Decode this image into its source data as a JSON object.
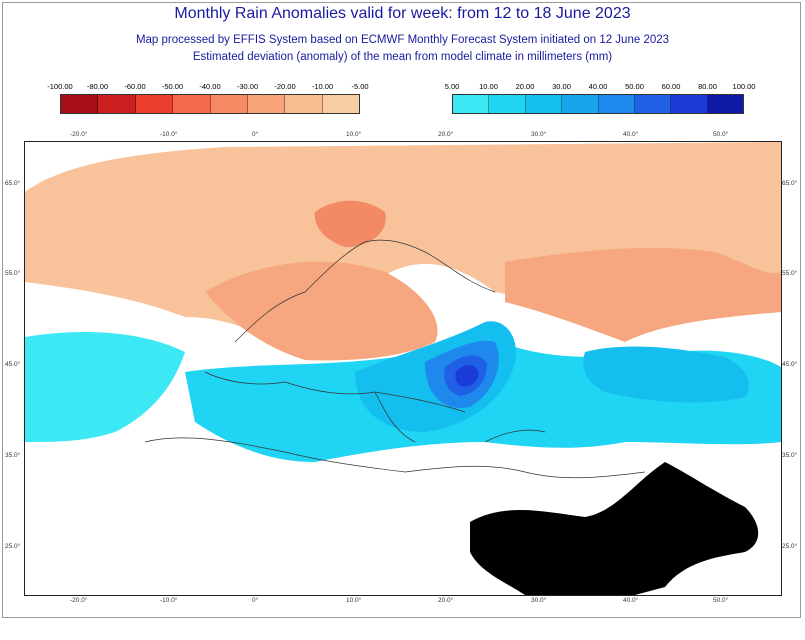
{
  "title": "Monthly Rain Anomalies valid for week: from 12 to 18 June 2023",
  "subtitle1": "Map processed by EFFIS System based on ECMWF Monthly Forecast System initiated on 12 June 2023",
  "subtitle2": "Estimated deviation (anomaly) of the mean from model climate in millimeters (mm)",
  "legend_negative": {
    "labels": [
      "-100.00",
      "-80.00",
      "-60.00",
      "-50.00",
      "-40.00",
      "-30.00",
      "-20.00",
      "-10.00",
      "-5.00"
    ],
    "colors": [
      "#a50f15",
      "#cb2020",
      "#ea3f2f",
      "#f46a4a",
      "#f78a64",
      "#f8a57c",
      "#f9bc8f",
      "#f8cfa2"
    ]
  },
  "legend_positive": {
    "labels": [
      "5.00",
      "10.00",
      "20.00",
      "30.00",
      "40.00",
      "50.00",
      "60.00",
      "80.00",
      "100.00"
    ],
    "colors": [
      "#3de8f5",
      "#20d4f3",
      "#14bff0",
      "#19a5ee",
      "#1f88ec",
      "#1f60e6",
      "#1b3bd8",
      "#0e19a6"
    ]
  },
  "map": {
    "lon_labels": [
      "-20.0°",
      "-10.0°",
      "0°",
      "10.0°",
      "20.0°",
      "30.0°",
      "40.0°",
      "50.0°"
    ],
    "lat_labels": [
      "65.0°",
      "55.0°",
      "45.0°",
      "35.0°",
      "25.0°"
    ],
    "colors": {
      "dry_light": "#f8c39a",
      "dry_mid": "#f6a77f",
      "dry_strong": "#f28a66",
      "wet_1": "#3de8f5",
      "wet_2": "#20d4f3",
      "wet_3": "#14bff0",
      "wet_4": "#1f88ec",
      "wet_5": "#1f60e6",
      "wet_6": "#1b3bd8",
      "no_data": "#000000",
      "border": "#333333"
    }
  }
}
